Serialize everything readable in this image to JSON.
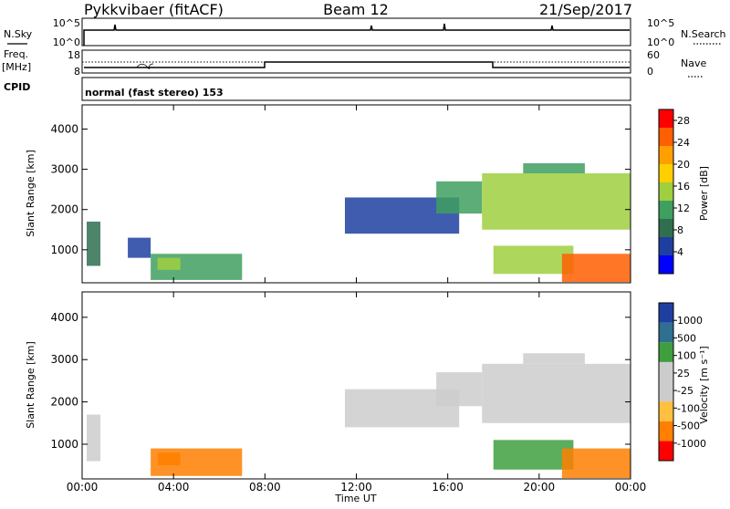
{
  "header": {
    "radar": "Pykkvibaer (fitACF)",
    "beam": "Beam 12",
    "date": "21/Sep/2017"
  },
  "params": {
    "nsky_label": "N.Sky",
    "nsearch_label": "N.Search",
    "freq_label": "Freq.",
    "freq_unit": "[MHz]",
    "nave_label": "Nave",
    "cpid_label": "CPID",
    "cpid_text": "normal (fast stereo) 153",
    "noise_left_ticks": [
      "10^5",
      "10^0"
    ],
    "noise_right_ticks": [
      "10^5",
      "10^0"
    ],
    "freq_left_ticks": [
      "18",
      "8"
    ],
    "nave_right_ticks": [
      "60",
      "0"
    ]
  },
  "colors": {
    "power_scale": [
      "#0000ff",
      "#1f3fa0",
      "#2f6f4f",
      "#3f9f5f",
      "#9fcf3f",
      "#ffcf00",
      "#ff9f00",
      "#ff5f00",
      "#ff0000"
    ],
    "velocity_scale": [
      "#ff0000",
      "#ff7f00",
      "#ffbf3f",
      "#cccccc",
      "#cccccc",
      "#3f9f3f",
      "#2f6f8f",
      "#1f3fa0"
    ]
  },
  "chart_data": [
    {
      "type": "heatmap",
      "panel": "power",
      "xlabel": "",
      "ylabel": "Slant Range [km]",
      "x_ticks": [
        "00:00",
        "04:00",
        "08:00",
        "12:00",
        "16:00",
        "20:00",
        "00:00"
      ],
      "y_ticks": [
        "1000",
        "2000",
        "3000",
        "4000"
      ],
      "ylim": [
        180,
        4600
      ],
      "colorbar_label": "Power [dB]",
      "colorbar_ticks": [
        "4",
        "8",
        "12",
        "16",
        "20",
        "24",
        "28"
      ],
      "colorbar_range": [
        0,
        30
      ],
      "echo_regions": [
        {
          "t_start": 0.2,
          "t_end": 0.8,
          "r_start": 600,
          "r_end": 1700,
          "power": 8
        },
        {
          "t_start": 2.0,
          "t_end": 3.0,
          "r_start": 800,
          "r_end": 1300,
          "power": 6
        },
        {
          "t_start": 3.0,
          "t_end": 7.0,
          "r_start": 250,
          "r_end": 900,
          "power": 12
        },
        {
          "t_start": 3.3,
          "t_end": 4.3,
          "r_start": 500,
          "r_end": 800,
          "power": 16
        },
        {
          "t_start": 11.5,
          "t_end": 16.5,
          "r_start": 1400,
          "r_end": 2300,
          "power": 6
        },
        {
          "t_start": 15.5,
          "t_end": 17.5,
          "r_start": 1900,
          "r_end": 2700,
          "power": 10
        },
        {
          "t_start": 17.5,
          "t_end": 24.0,
          "r_start": 1500,
          "r_end": 2900,
          "power": 16
        },
        {
          "t_start": 18.0,
          "t_end": 21.5,
          "r_start": 400,
          "r_end": 1100,
          "power": 14
        },
        {
          "t_start": 21.0,
          "t_end": 24.0,
          "r_start": 200,
          "r_end": 900,
          "power": 24
        },
        {
          "t_start": 19.3,
          "t_end": 22.0,
          "r_start": 2900,
          "r_end": 3150,
          "power": 10
        }
      ]
    },
    {
      "type": "heatmap",
      "panel": "velocity",
      "xlabel": "Time UT",
      "ylabel": "Slant Range [km]",
      "x_ticks": [
        "00:00",
        "04:00",
        "08:00",
        "12:00",
        "16:00",
        "20:00",
        "00:00"
      ],
      "y_ticks": [
        "1000",
        "2000",
        "3000",
        "4000"
      ],
      "ylim": [
        180,
        4600
      ],
      "colorbar_label": "Velocity [m s⁻¹]",
      "colorbar_ticks": [
        "1000",
        "500",
        "100",
        "25",
        "-25",
        "-100",
        "-500",
        "-1000"
      ],
      "echo_regions": [
        {
          "t_start": 0.2,
          "t_end": 0.8,
          "r_start": 600,
          "r_end": 1700,
          "velocity": 0
        },
        {
          "t_start": 3.0,
          "t_end": 7.0,
          "r_start": 250,
          "r_end": 900,
          "velocity": -150
        },
        {
          "t_start": 3.3,
          "t_end": 4.3,
          "r_start": 500,
          "r_end": 800,
          "velocity": -300
        },
        {
          "t_start": 11.5,
          "t_end": 16.5,
          "r_start": 1400,
          "r_end": 2300,
          "velocity": 0
        },
        {
          "t_start": 15.5,
          "t_end": 17.5,
          "r_start": 1900,
          "r_end": 2700,
          "velocity": 0
        },
        {
          "t_start": 17.5,
          "t_end": 24.0,
          "r_start": 1500,
          "r_end": 2900,
          "velocity": 0
        },
        {
          "t_start": 18.0,
          "t_end": 21.5,
          "r_start": 400,
          "r_end": 1100,
          "velocity": 200
        },
        {
          "t_start": 21.0,
          "t_end": 24.0,
          "r_start": 200,
          "r_end": 900,
          "velocity": -200
        },
        {
          "t_start": 19.3,
          "t_end": 22.0,
          "r_start": 2900,
          "r_end": 3150,
          "velocity": 0
        }
      ]
    }
  ]
}
